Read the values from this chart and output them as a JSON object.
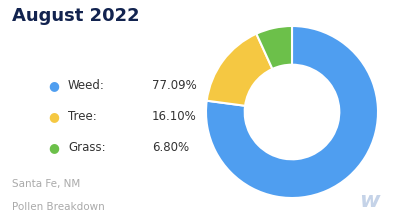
{
  "title": "August 2022",
  "subtitle_line1": "Santa Fe, NM",
  "subtitle_line2": "Pollen Breakdown",
  "slices": [
    77.09,
    16.1,
    6.8
  ],
  "labels": [
    "Weed",
    "Tree",
    "Grass"
  ],
  "percentages": [
    "77.09%",
    "16.10%",
    "6.80%"
  ],
  "colors": [
    "#4F9EF0",
    "#F5C842",
    "#6CC04A"
  ],
  "background_color": "#ffffff",
  "title_color": "#12234F",
  "legend_label_color": "#333333",
  "subtitle_color": "#aaaaaa",
  "watermark_color": "#c5d3e8",
  "donut_width": 0.45,
  "start_angle": 90
}
